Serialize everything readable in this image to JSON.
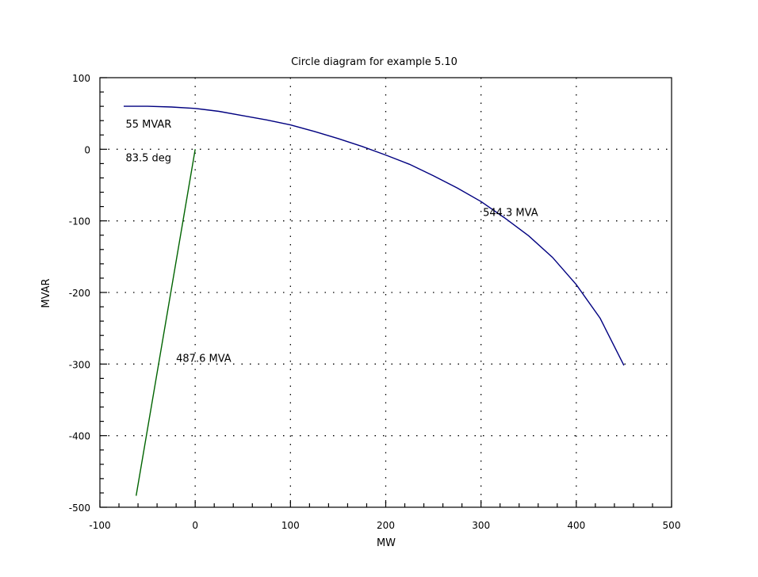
{
  "chart_data": {
    "type": "line",
    "title": "Circle diagram for example 5.10",
    "xlabel": "MW",
    "ylabel": "MVAR",
    "xlim": [
      -100,
      500
    ],
    "ylim": [
      -500,
      100
    ],
    "xticks": [
      -100,
      0,
      100,
      200,
      300,
      400,
      500
    ],
    "yticks": [
      100,
      0,
      -100,
      -200,
      -300,
      -400,
      -500
    ],
    "grid": true,
    "series": [
      {
        "color": "#000080",
        "x": [
          -75,
          -50,
          -25,
          0,
          25,
          50,
          75,
          100,
          125,
          150,
          175,
          200,
          225,
          250,
          275,
          300,
          325,
          350,
          375,
          400,
          425,
          450
        ],
        "y": [
          60,
          60,
          59,
          57,
          53,
          47,
          41,
          34,
          25,
          15,
          4,
          -8,
          -21,
          -37,
          -54,
          -73,
          -96,
          -121,
          -151,
          -189,
          -236,
          -302
        ]
      },
      {
        "color": "#006400",
        "x": [
          0,
          -62
        ],
        "y": [
          0,
          -484
        ]
      }
    ],
    "annotations": [
      {
        "text": "55 MVAR",
        "x": -73,
        "y": 30
      },
      {
        "text": "83.5 deg",
        "x": -73,
        "y": -17
      },
      {
        "text": "544.3 MVA",
        "x": 302,
        "y": -93
      },
      {
        "text": "487.6 MVA",
        "x": -20,
        "y": -297
      }
    ]
  }
}
